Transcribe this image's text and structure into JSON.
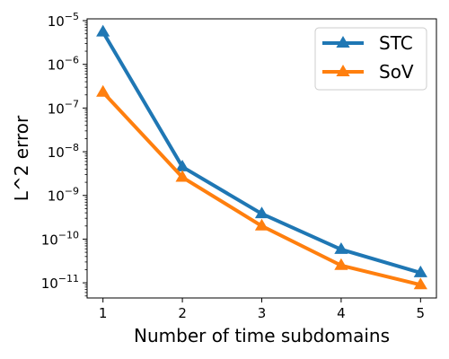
{
  "chart_data": {
    "type": "line",
    "title": "",
    "xlabel": "Number of time subdomains",
    "ylabel": "L^2 error",
    "yscale": "log",
    "x": [
      1,
      2,
      3,
      4,
      5
    ],
    "xlim": [
      0.8,
      5.2
    ],
    "ylim": [
      4.5e-12,
      1.1e-05
    ],
    "x_ticks": [
      "1",
      "2",
      "3",
      "4",
      "5"
    ],
    "y_ticks": [
      {
        "value": 1e-11,
        "base": "10",
        "exp": "−11"
      },
      {
        "value": 1e-10,
        "base": "10",
        "exp": "−10"
      },
      {
        "value": 1e-09,
        "base": "10",
        "exp": "−9"
      },
      {
        "value": 1e-08,
        "base": "10",
        "exp": "−8"
      },
      {
        "value": 1e-07,
        "base": "10",
        "exp": "−7"
      },
      {
        "value": 1e-06,
        "base": "10",
        "exp": "−6"
      },
      {
        "value": 1e-05,
        "base": "10",
        "exp": "−5"
      }
    ],
    "grid": false,
    "legend_position": "top-right",
    "marker": "triangle",
    "series": [
      {
        "name": "STC",
        "color": "#1f77b4",
        "values": [
          5.5e-06,
          4.5e-09,
          3.8e-10,
          5.8e-11,
          1.7e-11
        ]
      },
      {
        "name": "SoV",
        "color": "#ff7f0e",
        "values": [
          2.3e-07,
          2.6e-09,
          2e-10,
          2.5e-11,
          9e-12
        ]
      }
    ]
  }
}
